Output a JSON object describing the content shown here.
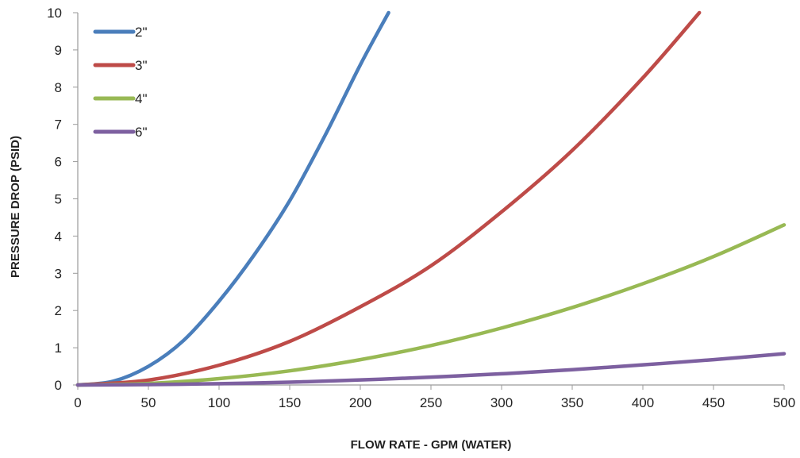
{
  "chart_data": {
    "type": "line",
    "title": "",
    "xlabel": "FLOW RATE - GPM (WATER)",
    "ylabel": "PRESSURE DROP (PSID)",
    "xlim": [
      0,
      500
    ],
    "ylim": [
      0,
      10
    ],
    "x_ticks": [
      "0",
      "50",
      "100",
      "150",
      "200",
      "250",
      "300",
      "350",
      "400",
      "450",
      "500"
    ],
    "y_ticks": [
      "0",
      "1",
      "2",
      "3",
      "4",
      "5",
      "6",
      "7",
      "8",
      "9",
      "10"
    ],
    "grid": false,
    "legend": {
      "position": "top-left"
    },
    "series": [
      {
        "name": "2\"",
        "color": "#4a7ebb",
        "x": [
          0,
          25,
          50,
          75,
          100,
          125,
          150,
          175,
          200,
          220
        ],
        "y": [
          0,
          0.1,
          0.5,
          1.2,
          2.25,
          3.5,
          4.95,
          6.7,
          8.6,
          10
        ]
      },
      {
        "name": "3\"",
        "color": "#be4b48",
        "x": [
          0,
          50,
          100,
          150,
          200,
          250,
          300,
          350,
          400,
          440
        ],
        "y": [
          0,
          0.13,
          0.53,
          1.17,
          2.1,
          3.2,
          4.65,
          6.3,
          8.25,
          10
        ]
      },
      {
        "name": "4\"",
        "color": "#98b954",
        "x": [
          0,
          50,
          100,
          150,
          200,
          250,
          300,
          350,
          400,
          450,
          500
        ],
        "y": [
          0,
          0.04,
          0.17,
          0.38,
          0.68,
          1.06,
          1.53,
          2.08,
          2.72,
          3.45,
          4.3
        ]
      },
      {
        "name": "6\"",
        "color": "#7d60a0",
        "x": [
          0,
          50,
          100,
          150,
          200,
          250,
          300,
          350,
          400,
          450,
          500
        ],
        "y": [
          0,
          0.01,
          0.035,
          0.075,
          0.135,
          0.21,
          0.3,
          0.41,
          0.54,
          0.68,
          0.84
        ]
      }
    ]
  }
}
